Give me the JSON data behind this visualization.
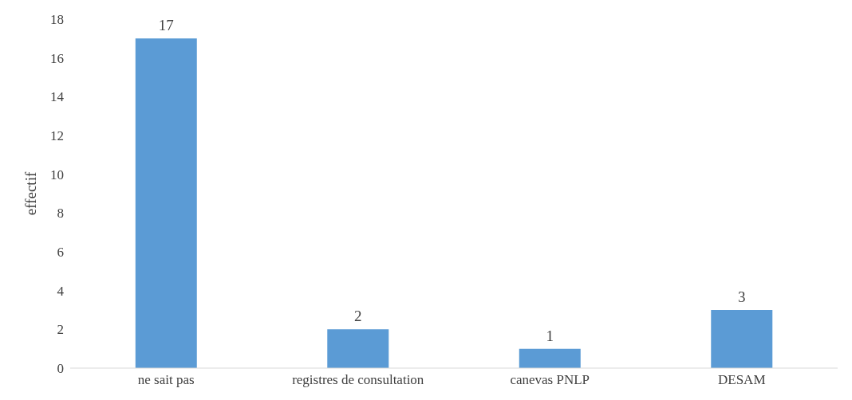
{
  "chart_data": {
    "type": "bar",
    "ylabel": "effectif",
    "categories": [
      "ne sait pas",
      "registres de consultation",
      "canevas PNLP",
      "DESAM"
    ],
    "values": [
      17,
      2,
      1,
      3
    ],
    "color": "#5b9bd5",
    "ylim": [
      0,
      18
    ],
    "yticks": [
      0,
      2,
      4,
      6,
      8,
      10,
      12,
      14,
      16,
      18
    ],
    "data_labels": true,
    "grid": false
  }
}
